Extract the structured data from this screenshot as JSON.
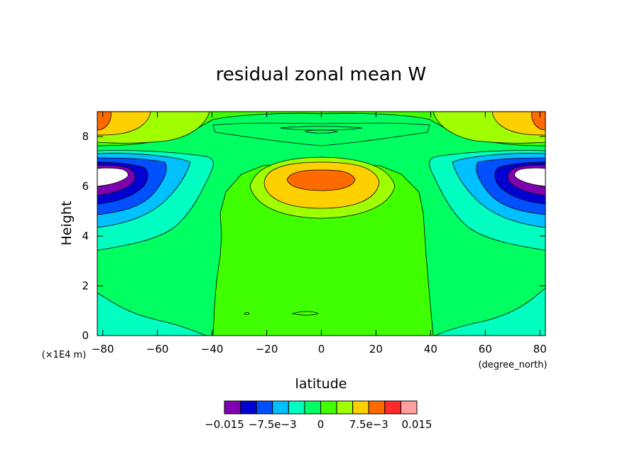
{
  "chart_data": {
    "type": "heatmap",
    "title": "residual zonal mean W",
    "xlabel": "latitude",
    "ylabel": "Height",
    "x_units": "(degree_north)",
    "y_units": "(×1E4 m)",
    "xlim": [
      -82,
      82
    ],
    "ylim": [
      0,
      9
    ],
    "x_ticks": [
      -80,
      -60,
      -40,
      -20,
      0,
      20,
      40,
      60,
      80
    ],
    "x_tick_labels": [
      "−80",
      "−60",
      "−40",
      "−20",
      "0",
      "20",
      "40",
      "60",
      "80"
    ],
    "y_ticks": [
      0,
      2,
      4,
      6,
      8
    ],
    "y_tick_labels": [
      "0",
      "2",
      "4",
      "6",
      "8"
    ],
    "colorbar": {
      "levels": [
        -0.015,
        -0.0125,
        -0.01,
        -0.0075,
        -0.005,
        -0.0025,
        0,
        0.0025,
        0.005,
        0.0075,
        0.01,
        0.0125,
        0.015
      ],
      "colors": [
        "#7f00b0",
        "#0000d0",
        "#0050ff",
        "#00c0ff",
        "#00ffc0",
        "#00ff60",
        "#40ff00",
        "#a0ff00",
        "#ffd000",
        "#ff6a00",
        "#ff2a2a",
        "#ffa0a0"
      ],
      "tick_labels": [
        "−0.015",
        "−7.5e−3",
        "0",
        "7.5e−3",
        "0.015"
      ],
      "tick_values": [
        -0.015,
        -0.0075,
        0,
        0.0075,
        0.015
      ]
    },
    "grid": false,
    "fields": [
      {
        "name": "equatorial upper maximum",
        "lat": 0,
        "height": 6.3,
        "value": 0.011
      },
      {
        "name": "polar mid-level minimum (south)",
        "lat": -80,
        "height": 6.3,
        "value": -0.016
      },
      {
        "name": "polar mid-level minimum (north)",
        "lat": 80,
        "height": 6.3,
        "value": -0.016
      },
      {
        "name": "polar top maximum (south)",
        "lat": -82,
        "height": 8.7,
        "value": 0.009
      },
      {
        "name": "polar top maximum (north)",
        "lat": 82,
        "height": 8.7,
        "value": 0.009
      },
      {
        "name": "tropical lower plateau",
        "lat": 0,
        "height": 2.5,
        "value": 0.001
      }
    ]
  }
}
